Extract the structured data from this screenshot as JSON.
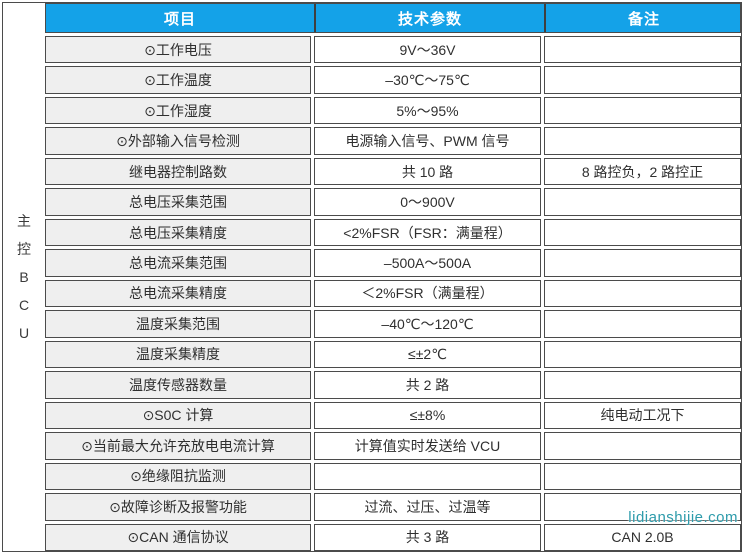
{
  "sidebar": {
    "label": "主控BCU",
    "label_chars": [
      "主",
      "控",
      "B",
      "C",
      "U"
    ]
  },
  "table": {
    "headers": [
      "项目",
      "技术参数",
      "备注"
    ],
    "rows": [
      {
        "item": "⊙工作电压",
        "param": "9V～36V",
        "note": ""
      },
      {
        "item": "⊙工作温度",
        "param": "–30℃～75℃",
        "note": ""
      },
      {
        "item": "⊙工作湿度",
        "param": "5%～95%",
        "note": ""
      },
      {
        "item": "⊙外部输入信号检测",
        "param": "电源输入信号、PWM 信号",
        "note": ""
      },
      {
        "item": "继电器控制路数",
        "param": "共 10 路",
        "note": "8 路控负，2 路控正"
      },
      {
        "item": "总电压采集范围",
        "param": "0～900V",
        "note": ""
      },
      {
        "item": "总电压采集精度",
        "param": "<2%FSR（FSR：满量程）",
        "note": ""
      },
      {
        "item": "总电流采集范围",
        "param": "–500A～500A",
        "note": ""
      },
      {
        "item": "总电流采集精度",
        "param": "＜2%FSR（满量程）",
        "note": ""
      },
      {
        "item": "温度采集范围",
        "param": "–40℃～120℃",
        "note": ""
      },
      {
        "item": "温度采集精度",
        "param": "≤±2℃",
        "note": ""
      },
      {
        "item": "温度传感器数量",
        "param": "共 2 路",
        "note": ""
      },
      {
        "item": "⊙S0C 计算",
        "param": "≤±8%",
        "note": "纯电动工况下"
      },
      {
        "item": "⊙当前最大允许充放电电流计算",
        "param": "计算值实时发送给 VCU",
        "note": ""
      },
      {
        "item": "⊙绝缘阻抗监测",
        "param": "",
        "note": ""
      },
      {
        "item": "⊙故障诊断及报警功能",
        "param": "过流、过压、过温等",
        "note": ""
      },
      {
        "item": "⊙CAN 通信协议",
        "param": "共 3 路",
        "note": "CAN 2.0B"
      }
    ]
  },
  "watermark": {
    "text": "lidianshijie.com",
    "color": "#2d9bab"
  },
  "colors": {
    "header_bg": "#14a2e8",
    "header_text": "#ffffff",
    "item_column_bg": "#efefef",
    "cell_bg": "#ffffff",
    "border": "#4b4b4b"
  }
}
